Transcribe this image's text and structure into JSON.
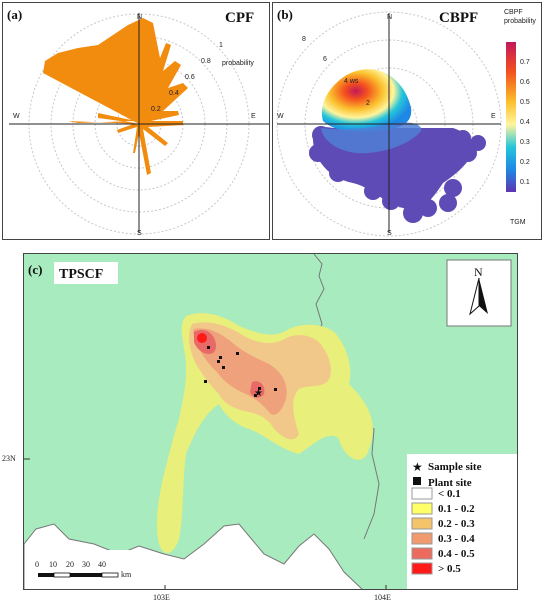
{
  "panel_a": {
    "label": "(a)",
    "title": "CPF",
    "compass": {
      "n": "N",
      "e": "E",
      "s": "S",
      "w": "W"
    },
    "ring_labels": [
      "0.2",
      "0.4",
      "0.6",
      "0.8",
      "1"
    ],
    "radial_label": "probability",
    "colors": {
      "fill": "#f28c0f"
    }
  },
  "panel_b": {
    "label": "(b)",
    "title": "CBPF",
    "compass": {
      "n": "N",
      "e": "E",
      "s": "S",
      "w": "W"
    },
    "ring_labels": [
      "2",
      "4 ws",
      "6",
      "8"
    ],
    "colorbar": {
      "title_line1": "CBPF",
      "title_line2": "probability",
      "ticks": [
        "0.7",
        "0.6",
        "0.5",
        "0.4",
        "0.3",
        "0.2",
        "0.1"
      ],
      "bottom_label": "TGM"
    }
  },
  "panel_c": {
    "label": "(c)",
    "title": "TPSCF",
    "north_label": "N",
    "lat_label": "23N",
    "lon_labels": [
      "103E",
      "104E"
    ],
    "scale": {
      "ticks": [
        "0",
        "10",
        "20",
        "30",
        "40"
      ],
      "unit": "km"
    },
    "legend": {
      "sample_site": "Sample site",
      "plant_site": "Plant site",
      "classes": [
        {
          "label": "< 0.1",
          "color": "#ffffff"
        },
        {
          "label": "0.1 - 0.2",
          "color": "#ffff66"
        },
        {
          "label": "0.2 - 0.3",
          "color": "#f5c46a"
        },
        {
          "label": "0.3 - 0.4",
          "color": "#f09a6e"
        },
        {
          "label": "0.4 - 0.5",
          "color": "#ec6a5e"
        },
        {
          "label": "> 0.5",
          "color": "#ff1a1a"
        }
      ]
    },
    "colors": {
      "background": "#a8ebbe",
      "contour_yellow": "#e8ef7a",
      "contour_tan": "#f2c88a",
      "contour_orange": "#eea17a",
      "contour_red": "#e86a66"
    }
  }
}
